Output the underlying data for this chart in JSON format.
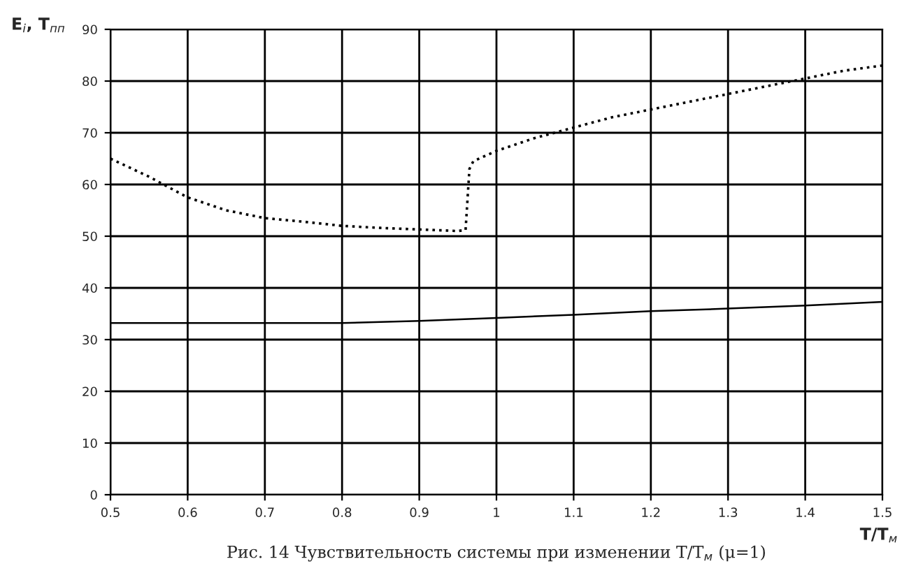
{
  "chart_data": {
    "type": "line",
    "xlabel": "T/T$_{м}$",
    "ylabel": "E$_{i}$, T$_{пп}$",
    "annotations": [
      "Рис. 14 Чувствительность системы при изменении T/T$_{м}$ (μ=1)"
    ],
    "series": [
      {
        "color": "#000000",
        "line_style": "dotted",
        "x": [
          0.5,
          0.55,
          0.6,
          0.65,
          0.7,
          0.75,
          0.8,
          0.85,
          0.9,
          0.95,
          0.96,
          0.965,
          0.97,
          1.0,
          1.05,
          1.1,
          1.15,
          1.2,
          1.25,
          1.3,
          1.35,
          1.4,
          1.45,
          1.5
        ],
        "values": [
          65,
          61.5,
          57.5,
          55,
          53.5,
          52.8,
          52,
          51.6,
          51.3,
          51,
          51.2,
          63,
          64.5,
          66.5,
          69,
          71,
          73,
          74.5,
          76,
          77.5,
          79,
          80.5,
          82,
          83
        ]
      },
      {
        "color": "#000000",
        "line_style": "solid",
        "x": [
          0.5,
          0.8,
          0.9,
          1.0,
          1.1,
          1.2,
          1.3,
          1.4,
          1.5
        ],
        "values": [
          33.2,
          33.2,
          33.6,
          34.2,
          34.8,
          35.5,
          36,
          36.6,
          37.3
        ]
      }
    ],
    "xlim": [
      0.5,
      1.5
    ],
    "xticks": [
      0.5,
      0.6,
      0.7,
      0.8,
      0.9,
      1,
      1.1,
      1.2,
      1.3,
      1.4,
      1.5
    ],
    "ylim": [
      0,
      90
    ],
    "yticks": [
      0,
      10,
      20,
      30,
      40,
      50,
      60,
      70,
      80,
      90
    ],
    "grid": true,
    "legend": false
  }
}
